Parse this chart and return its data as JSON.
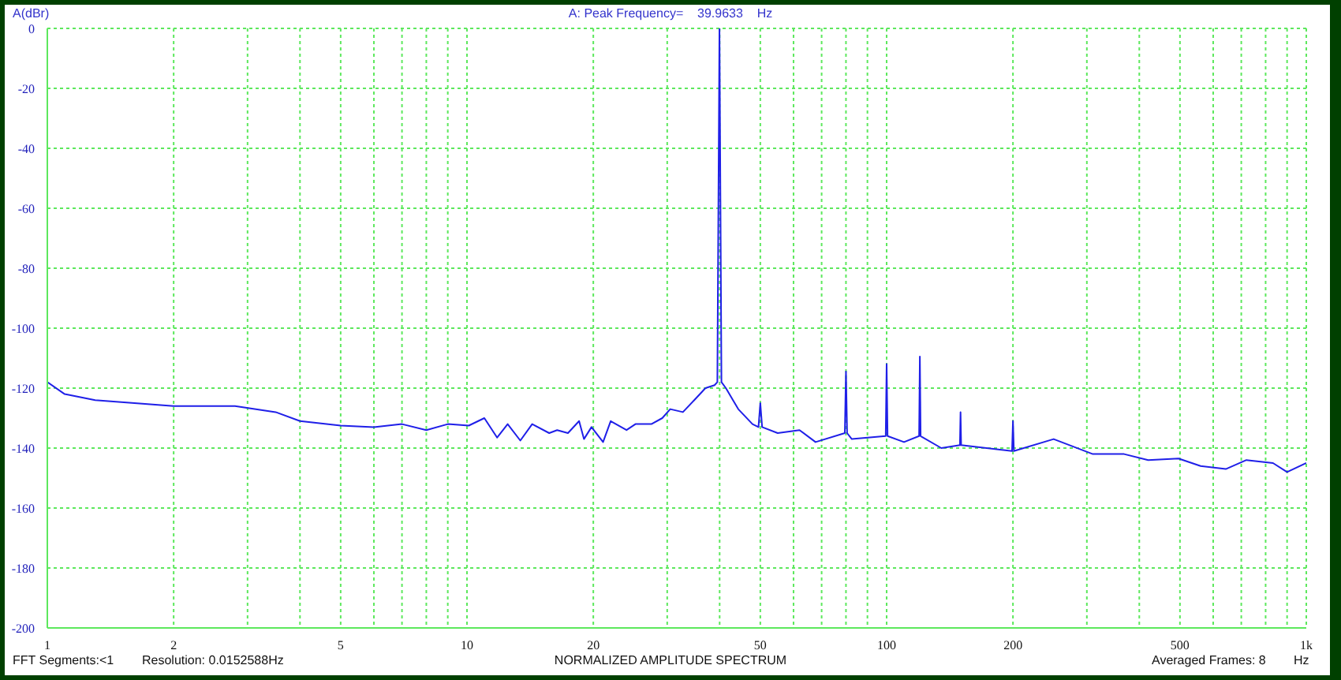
{
  "chart_data": {
    "type": "line",
    "title": "A: Peak Frequency=    39.9633    Hz",
    "ylabel": "A(dBr)",
    "xlabel": "NORMALIZED AMPLITUDE SPECTRUM",
    "annotations": [
      "FFT Segments:<1",
      "Resolution: 0.0152588Hz",
      "Averaged Frames: 8",
      "Hz"
    ],
    "log": "x",
    "grid": true,
    "marker": "none",
    "line_style": "solid",
    "xlim": [
      1,
      1000
    ],
    "xticks": [
      1,
      2,
      {
        "value": 3,
        "label": null
      },
      {
        "value": 4,
        "label": null
      },
      5,
      {
        "value": 6,
        "label": null
      },
      {
        "value": 7,
        "label": null
      },
      {
        "value": 8,
        "label": null
      },
      {
        "value": 9,
        "label": null
      },
      10,
      20,
      {
        "value": 30,
        "label": null
      },
      {
        "value": 40,
        "label": null
      },
      50,
      {
        "value": 60,
        "label": null
      },
      {
        "value": 70,
        "label": null
      },
      {
        "value": 80,
        "label": null
      },
      {
        "value": 90,
        "label": null
      },
      100,
      200,
      {
        "value": 300,
        "label": null
      },
      {
        "value": 400,
        "label": null
      },
      500,
      {
        "value": 600,
        "label": null
      },
      {
        "value": 700,
        "label": null
      },
      {
        "value": 800,
        "label": null
      },
      {
        "value": 900,
        "label": null
      },
      {
        "value": 1000,
        "label": "1k"
      }
    ],
    "ylim": [
      -200,
      0
    ],
    "yticks": [
      -200,
      -180,
      -160,
      -140,
      -120,
      -100,
      -80,
      -60,
      -40,
      -20,
      0
    ],
    "series": [
      {
        "color": "#1f1fe8",
        "x": [
          1,
          1.1,
          1.3,
          2,
          2.8,
          3.5,
          4,
          5,
          6,
          7,
          8,
          9,
          10.1,
          11,
          11.8,
          12.5,
          13.4,
          14.3,
          15.7,
          16.4,
          17.4,
          18.5,
          19,
          19.8,
          21.1,
          22,
          24,
          25.2,
          27.5,
          29.2,
          30.5,
          32.7,
          34.8,
          37,
          38.9,
          39.5,
          39.96,
          40.4,
          41.4,
          44.3,
          47.9,
          49.5,
          50,
          50.5,
          55,
          62,
          67.7,
          79.5,
          80,
          80.5,
          82.6,
          99.5,
          100,
          100.5,
          110,
          119.5,
          120,
          120.5,
          135,
          149.5,
          150,
          150.5,
          199,
          200,
          201,
          250,
          310,
          368,
          420,
          496,
          560,
          643,
          720,
          833,
          900,
          1000
        ],
        "values": [
          -118,
          -122,
          -124,
          -126,
          -126,
          -128,
          -131,
          -132.5,
          -133,
          -132,
          -134,
          -132,
          -132.5,
          -130,
          -136.5,
          -132,
          -137.5,
          -132,
          -135,
          -134,
          -135,
          -131,
          -137,
          -133,
          -138,
          -131,
          -134,
          -132,
          -132,
          -130,
          -127,
          -128,
          -124,
          -120,
          -119,
          -118,
          0,
          -118,
          -120,
          -127,
          -132,
          -133,
          -125,
          -133,
          -135,
          -134,
          -138,
          -135,
          -114.5,
          -135,
          -137,
          -136,
          -112,
          -136,
          -138,
          -136,
          -109.5,
          -136,
          -140,
          -139,
          -128,
          -139,
          -141,
          -131,
          -141,
          -137,
          -142,
          -142,
          -144,
          -143.5,
          -146,
          -147,
          -144,
          -145,
          -148,
          -145
        ]
      }
    ]
  }
}
